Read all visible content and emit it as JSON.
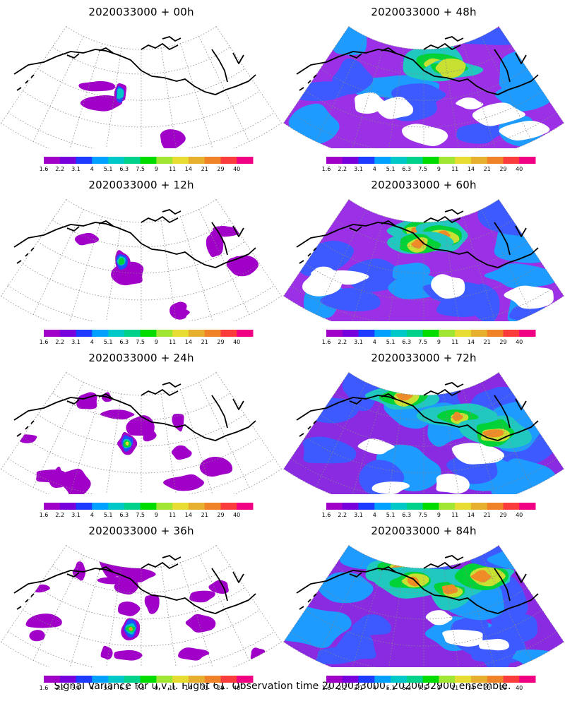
{
  "footer": "Signal Variance for u,v,T. Flight 61. Observation time 2020033000. 2020032900 ensemble.",
  "colorbar": {
    "ticks": [
      "1.6",
      "2.2",
      "3.1",
      "4",
      "5.1",
      "6.3",
      "7.5",
      "9",
      "11",
      "14",
      "21",
      "29",
      "40"
    ],
    "colors": [
      "#a000c8",
      "#7800dc",
      "#1e3cff",
      "#00a0ff",
      "#00c8c8",
      "#00d28c",
      "#00dc00",
      "#a0e632",
      "#e6dc32",
      "#e6af2d",
      "#f08228",
      "#fa3c3c",
      "#f00082"
    ]
  },
  "panels": [
    {
      "title": "2020033000 + 00h",
      "intensity": 0
    },
    {
      "title": "2020033000 + 12h",
      "intensity": 1
    },
    {
      "title": "2020033000 + 24h",
      "intensity": 2
    },
    {
      "title": "2020033000 + 36h",
      "intensity": 3
    },
    {
      "title": "2020033000 + 48h",
      "intensity": 4
    },
    {
      "title": "2020033000 + 60h",
      "intensity": 5
    },
    {
      "title": "2020033000 + 72h",
      "intensity": 6
    },
    {
      "title": "2020033000 + 84h",
      "intensity": 7
    }
  ]
}
